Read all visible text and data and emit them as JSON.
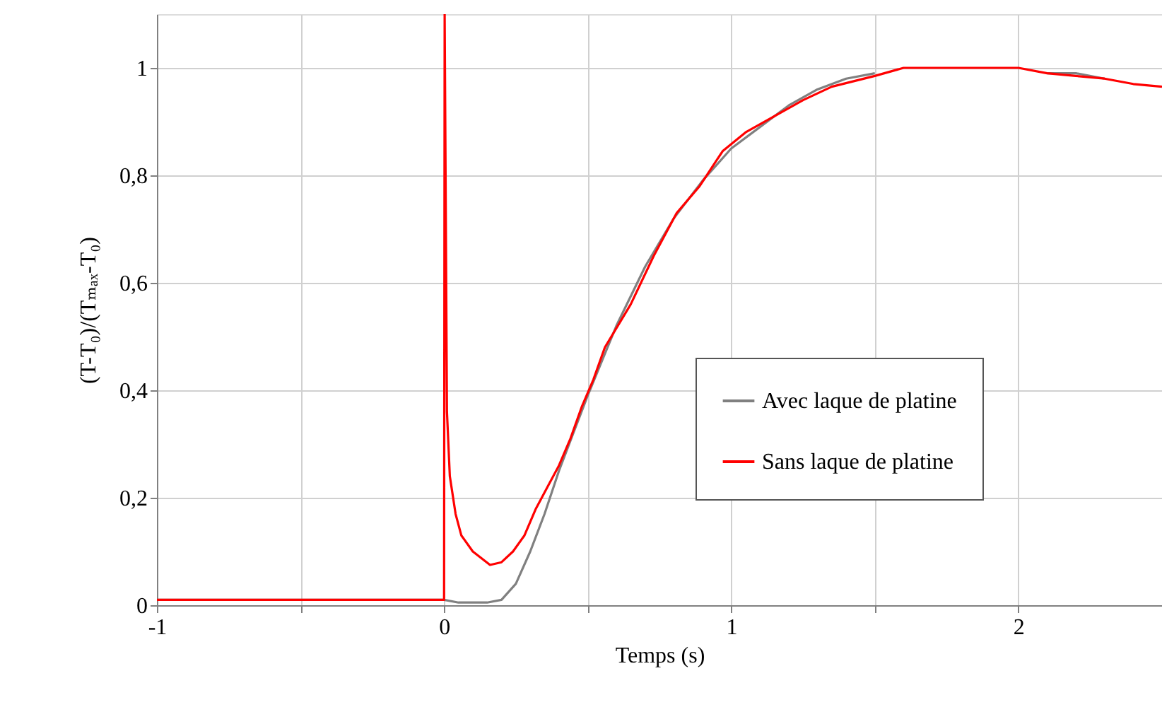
{
  "chart_data": {
    "type": "line",
    "xlabel": "Temps (s)",
    "ylabel": "(T-T₀)/(Tₘₐₓ-T₀)",
    "xlim": [
      -1,
      2.5
    ],
    "ylim": [
      0,
      1.1
    ],
    "xticks": [
      -1,
      {
        "value": -0.5,
        "label": null
      },
      0,
      {
        "value": 0.5,
        "label": null
      },
      1,
      {
        "value": 1.5,
        "label": null
      },
      2
    ],
    "yticks": [
      0,
      {
        "value": 0.2,
        "label": "0,2"
      },
      {
        "value": 0.4,
        "label": "0,4"
      },
      {
        "value": 0.6,
        "label": "0,6"
      },
      {
        "value": 0.8,
        "label": "0,8"
      },
      1
    ],
    "grid": true,
    "legend": "right",
    "line_style": "solid",
    "marker": "none",
    "series": [
      {
        "name": "Avec laque de platine",
        "color": "#808080",
        "x": [
          -1,
          -0.5,
          0,
          0.05,
          0.1,
          0.15,
          0.2,
          0.25,
          0.3,
          0.35,
          0.4,
          0.45,
          0.5,
          0.6,
          0.7,
          0.8,
          0.9,
          1.0,
          1.1,
          1.2,
          1.3,
          1.4,
          1.5,
          1.6,
          1.7,
          1.8,
          1.9,
          2.0,
          2.1,
          2.2,
          2.3
        ],
        "values": [
          0.01,
          0.01,
          0.01,
          0.005,
          0.005,
          0.005,
          0.01,
          0.04,
          0.1,
          0.17,
          0.25,
          0.32,
          0.39,
          0.52,
          0.63,
          0.72,
          0.79,
          0.85,
          0.89,
          0.93,
          0.96,
          0.98,
          0.99,
          null,
          null,
          null,
          null,
          null,
          0.99,
          0.99,
          0.98
        ]
      },
      {
        "name": "Sans laque de platine",
        "color": "#ff0000",
        "x": [
          -1,
          -0.75,
          -0.5,
          -0.25,
          0,
          0.002,
          0.01,
          0.02,
          0.04,
          0.06,
          0.1,
          0.16,
          0.2,
          0.24,
          0.28,
          0.32,
          0.36,
          0.4,
          0.44,
          0.48,
          0.52,
          0.56,
          0.65,
          0.73,
          0.81,
          0.89,
          0.97,
          1.05,
          1.15,
          1.25,
          1.35,
          1.5,
          1.6,
          1.75,
          1.9,
          2.0,
          2.1,
          2.2,
          2.3,
          2.4,
          2.5
        ],
        "values": [
          0.01,
          0.01,
          0.01,
          0.01,
          0.01,
          1.1,
          0.36,
          0.24,
          0.17,
          0.13,
          0.1,
          0.075,
          0.08,
          0.1,
          0.13,
          0.18,
          0.22,
          0.26,
          0.31,
          0.37,
          0.42,
          0.48,
          0.56,
          0.65,
          0.73,
          0.78,
          0.845,
          0.88,
          0.91,
          0.94,
          0.965,
          0.985,
          1.0,
          1.0,
          1.0,
          1.0,
          0.99,
          0.985,
          0.98,
          0.97,
          0.965
        ]
      }
    ]
  }
}
